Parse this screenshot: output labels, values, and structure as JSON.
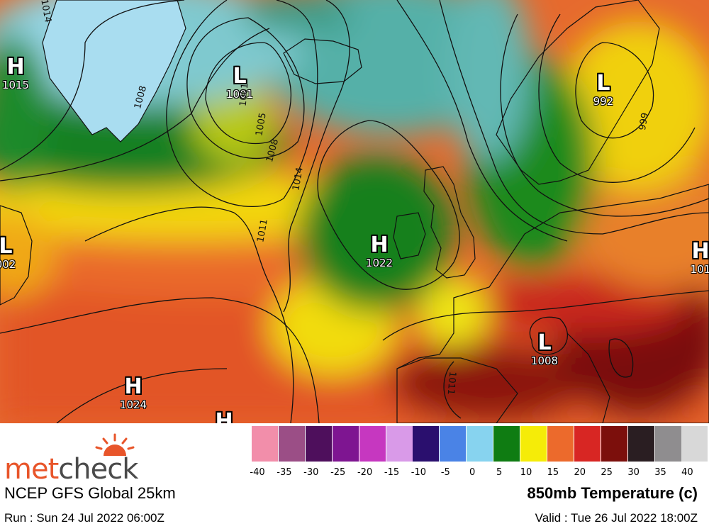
{
  "map": {
    "pressure_systems": [
      {
        "type": "H",
        "value": "1015"
      },
      {
        "type": "L",
        "value": "1001"
      },
      {
        "type": "L",
        "value": "992"
      },
      {
        "type": "L",
        "value": "002"
      },
      {
        "type": "H",
        "value": "1022"
      },
      {
        "type": "H",
        "value": "101"
      },
      {
        "type": "L",
        "value": "1008"
      },
      {
        "type": "H",
        "value": "1024"
      },
      {
        "type": "H",
        "value": ""
      }
    ],
    "isobar_labels": [
      "1014",
      "1008",
      "1001",
      "1005",
      "1008",
      "1014",
      "1011",
      "999",
      "1011"
    ]
  },
  "footer": {
    "logo": {
      "part1": "met",
      "part2": "check"
    },
    "model_name": "NCEP GFS Global 25km",
    "run_text": "Run : Sun 24 Jul 2022 06:00Z",
    "parameter": "850mb Temperature (c)",
    "valid_text": "Valid : Tue 26 Jul 2022 18:00Z"
  },
  "color_scale": {
    "colors": [
      "#f28eaa",
      "#9b4e86",
      "#4e0f5c",
      "#7e1591",
      "#c637c0",
      "#d99ae8",
      "#2a0f6e",
      "#4a83e6",
      "#87d3ef",
      "#0f7c12",
      "#f5ec08",
      "#ec6a2c",
      "#d82623",
      "#7c0f0c",
      "#2a1e22",
      "#8f8d8f",
      "#d8d8d8"
    ],
    "ticks": [
      "-40",
      "-35",
      "-30",
      "-25",
      "-20",
      "-15",
      "-10",
      "-5",
      "0",
      "5",
      "10",
      "15",
      "20",
      "25",
      "30",
      "35",
      "40"
    ]
  }
}
